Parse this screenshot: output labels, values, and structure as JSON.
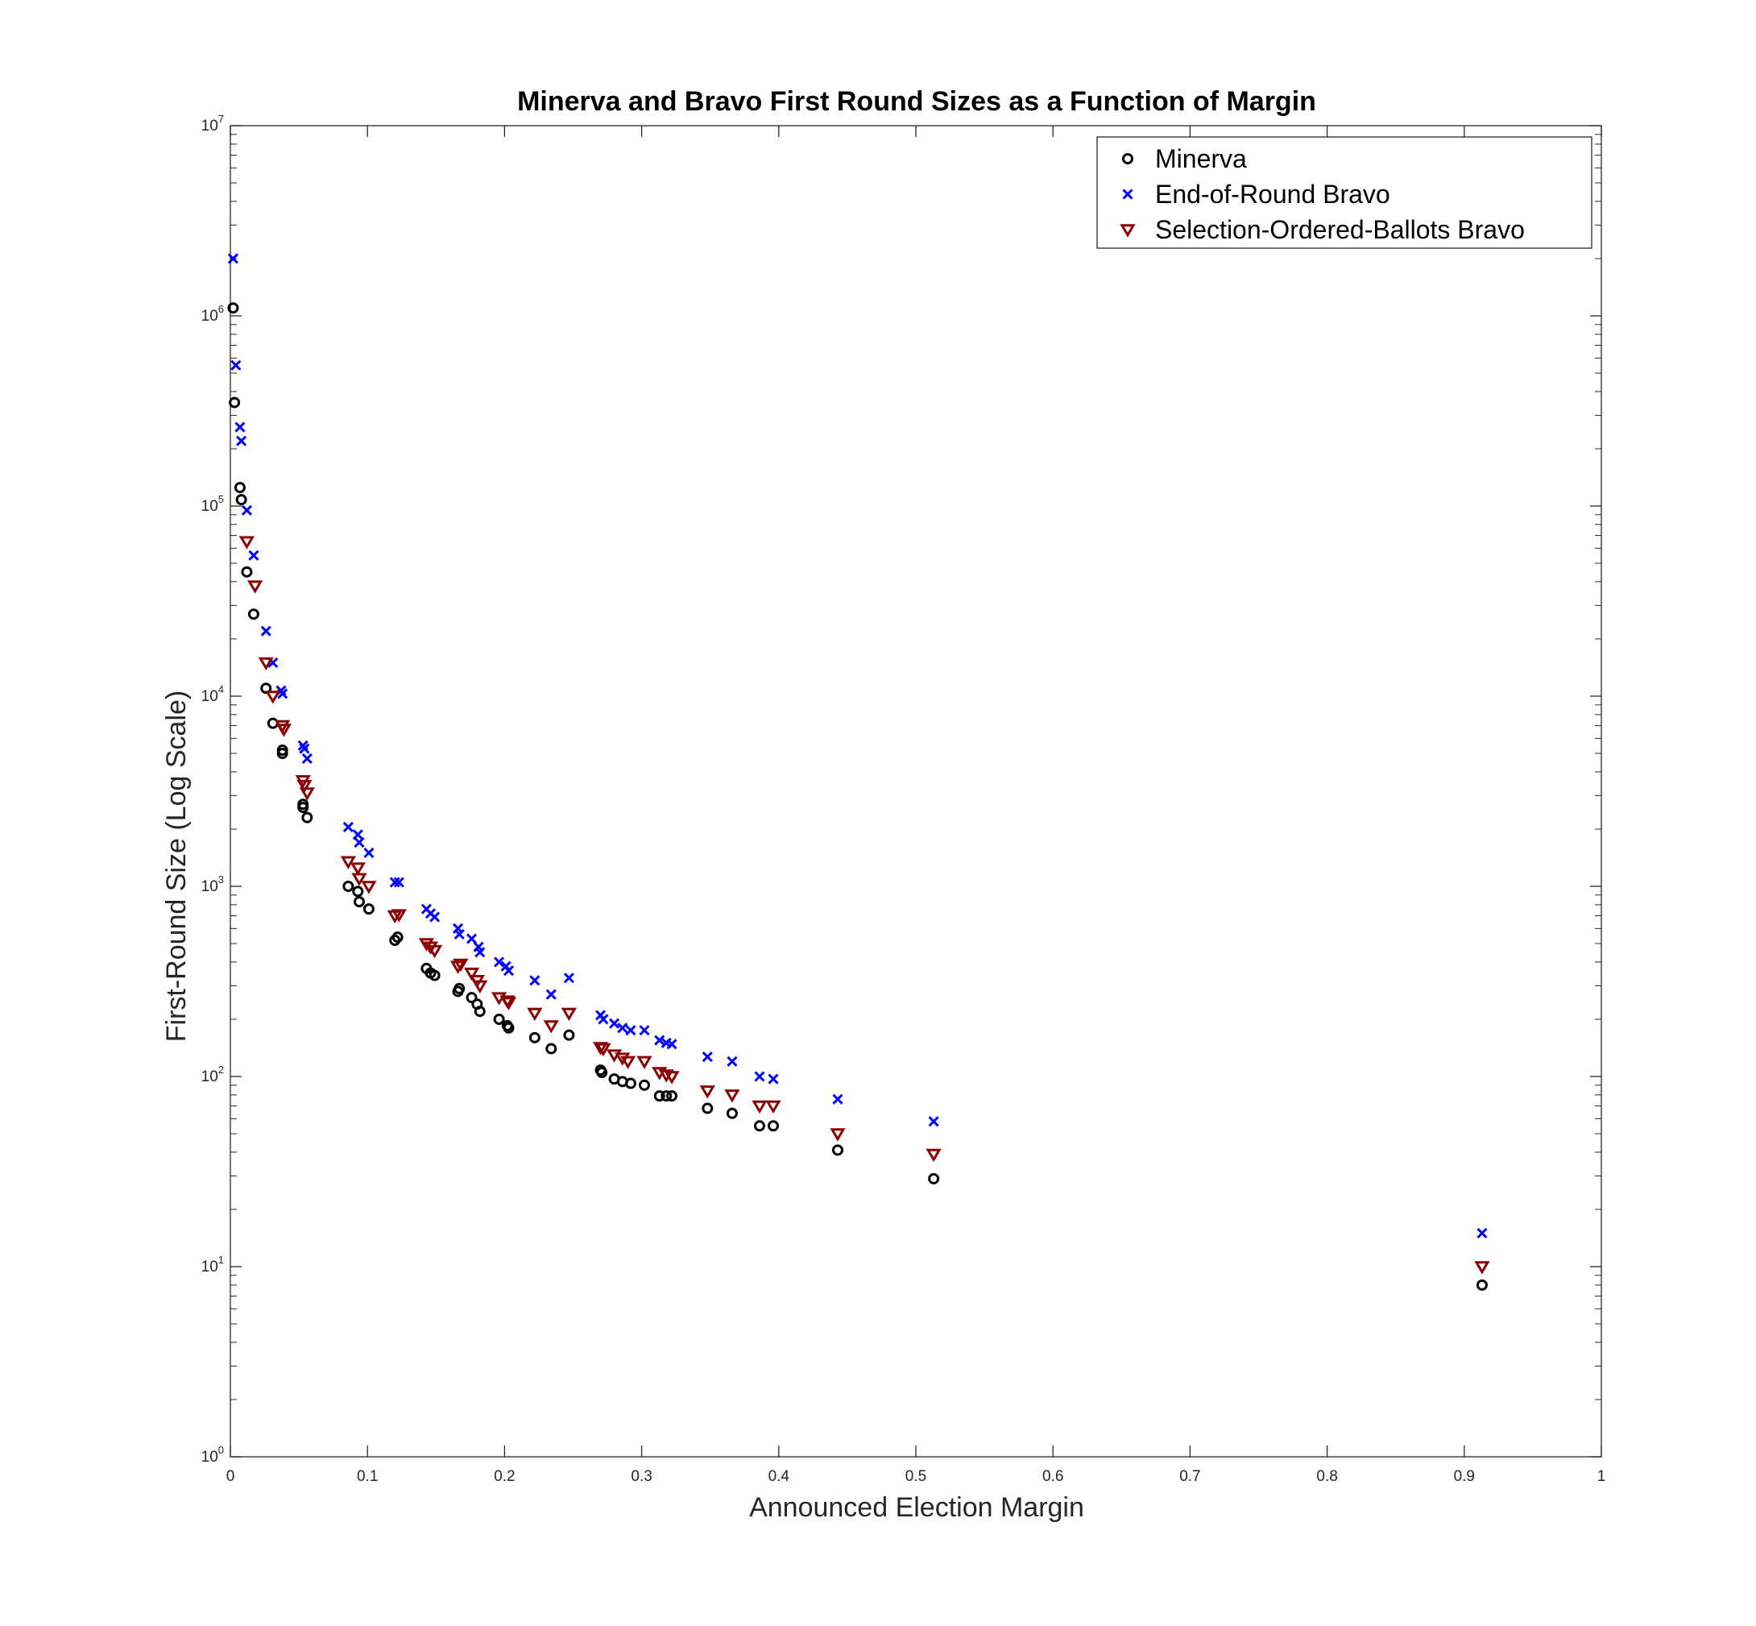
{
  "chart_data": {
    "type": "scatter",
    "title": "Minerva and Bravo First Round Sizes as a Function of Margin",
    "xlabel": "Announced Election Margin",
    "ylabel": "First-Round Size (Log Scale)",
    "xlim": [
      0,
      1
    ],
    "ylim": [
      1,
      10000000
    ],
    "yscale": "log",
    "grid": false,
    "legend_position": "top-right",
    "xticks": [
      "0",
      "0.1",
      "0.2",
      "0.3",
      "0.4",
      "0.5",
      "0.6",
      "0.7",
      "0.8",
      "0.9",
      "1"
    ],
    "yticks": [
      {
        "base": "10",
        "exp": "0"
      },
      {
        "base": "10",
        "exp": "1"
      },
      {
        "base": "10",
        "exp": "2"
      },
      {
        "base": "10",
        "exp": "3"
      },
      {
        "base": "10",
        "exp": "4"
      },
      {
        "base": "10",
        "exp": "5"
      },
      {
        "base": "10",
        "exp": "6"
      },
      {
        "base": "10",
        "exp": "7"
      }
    ],
    "series": [
      {
        "name": "Minerva",
        "marker": "circle",
        "color": "#000000",
        "points": [
          [
            0.002,
            1100000
          ],
          [
            0.003,
            350000
          ],
          [
            0.007,
            125000
          ],
          [
            0.008,
            108000
          ],
          [
            0.012,
            45000
          ],
          [
            0.017,
            27000
          ],
          [
            0.026,
            11000
          ],
          [
            0.031,
            7200
          ],
          [
            0.038,
            5200
          ],
          [
            0.038,
            5000
          ],
          [
            0.053,
            2700
          ],
          [
            0.053,
            2600
          ],
          [
            0.056,
            2300
          ],
          [
            0.086,
            1000
          ],
          [
            0.093,
            940
          ],
          [
            0.094,
            830
          ],
          [
            0.101,
            760
          ],
          [
            0.12,
            520
          ],
          [
            0.122,
            540
          ],
          [
            0.143,
            370
          ],
          [
            0.146,
            350
          ],
          [
            0.149,
            340
          ],
          [
            0.166,
            280
          ],
          [
            0.167,
            290
          ],
          [
            0.176,
            260
          ],
          [
            0.18,
            240
          ],
          [
            0.182,
            220
          ],
          [
            0.196,
            200
          ],
          [
            0.202,
            185
          ],
          [
            0.203,
            180
          ],
          [
            0.222,
            160
          ],
          [
            0.234,
            140
          ],
          [
            0.247,
            165
          ],
          [
            0.27,
            108
          ],
          [
            0.271,
            105
          ],
          [
            0.28,
            97
          ],
          [
            0.286,
            94
          ],
          [
            0.292,
            92
          ],
          [
            0.302,
            90
          ],
          [
            0.313,
            79
          ],
          [
            0.318,
            79
          ],
          [
            0.322,
            79
          ],
          [
            0.348,
            68
          ],
          [
            0.366,
            64
          ],
          [
            0.386,
            55
          ],
          [
            0.396,
            55
          ],
          [
            0.443,
            41
          ],
          [
            0.513,
            29
          ],
          [
            0.913,
            8
          ]
        ]
      },
      {
        "name": "End-of-Round Bravo",
        "marker": "x",
        "color": "#0000ff",
        "points": [
          [
            0.002,
            2000000
          ],
          [
            0.004,
            550000
          ],
          [
            0.007,
            260000
          ],
          [
            0.008,
            220000
          ],
          [
            0.012,
            95000
          ],
          [
            0.017,
            55000
          ],
          [
            0.026,
            22000
          ],
          [
            0.031,
            15000
          ],
          [
            0.037,
            10700
          ],
          [
            0.038,
            10300
          ],
          [
            0.053,
            5500
          ],
          [
            0.054,
            5300
          ],
          [
            0.056,
            4700
          ],
          [
            0.086,
            2050
          ],
          [
            0.093,
            1870
          ],
          [
            0.094,
            1700
          ],
          [
            0.101,
            1500
          ],
          [
            0.12,
            1050
          ],
          [
            0.123,
            1050
          ],
          [
            0.143,
            760
          ],
          [
            0.146,
            720
          ],
          [
            0.149,
            690
          ],
          [
            0.166,
            600
          ],
          [
            0.167,
            560
          ],
          [
            0.176,
            530
          ],
          [
            0.181,
            480
          ],
          [
            0.182,
            450
          ],
          [
            0.196,
            400
          ],
          [
            0.201,
            380
          ],
          [
            0.203,
            360
          ],
          [
            0.222,
            320
          ],
          [
            0.234,
            270
          ],
          [
            0.247,
            330
          ],
          [
            0.27,
            210
          ],
          [
            0.272,
            200
          ],
          [
            0.28,
            190
          ],
          [
            0.286,
            180
          ],
          [
            0.292,
            175
          ],
          [
            0.302,
            175
          ],
          [
            0.313,
            155
          ],
          [
            0.318,
            150
          ],
          [
            0.322,
            148
          ],
          [
            0.348,
            127
          ],
          [
            0.366,
            120
          ],
          [
            0.386,
            100
          ],
          [
            0.396,
            97
          ],
          [
            0.443,
            76
          ],
          [
            0.513,
            58
          ],
          [
            0.913,
            15
          ]
        ]
      },
      {
        "name": "Selection-Ordered-Ballots Bravo",
        "marker": "triangle-down",
        "color": "#8b0000",
        "points": [
          [
            0.012,
            65000
          ],
          [
            0.018,
            38000
          ],
          [
            0.026,
            15000
          ],
          [
            0.031,
            10000
          ],
          [
            0.038,
            7000
          ],
          [
            0.039,
            6700
          ],
          [
            0.053,
            3600
          ],
          [
            0.054,
            3400
          ],
          [
            0.056,
            3100
          ],
          [
            0.086,
            1350
          ],
          [
            0.093,
            1250
          ],
          [
            0.094,
            1100
          ],
          [
            0.101,
            1000
          ],
          [
            0.12,
            700
          ],
          [
            0.123,
            710
          ],
          [
            0.143,
            500
          ],
          [
            0.146,
            480
          ],
          [
            0.149,
            460
          ],
          [
            0.166,
            380
          ],
          [
            0.168,
            390
          ],
          [
            0.176,
            350
          ],
          [
            0.18,
            320
          ],
          [
            0.182,
            300
          ],
          [
            0.196,
            260
          ],
          [
            0.202,
            250
          ],
          [
            0.203,
            245
          ],
          [
            0.222,
            215
          ],
          [
            0.234,
            185
          ],
          [
            0.247,
            215
          ],
          [
            0.27,
            142
          ],
          [
            0.272,
            140
          ],
          [
            0.28,
            130
          ],
          [
            0.286,
            125
          ],
          [
            0.29,
            120
          ],
          [
            0.302,
            120
          ],
          [
            0.313,
            105
          ],
          [
            0.318,
            102
          ],
          [
            0.322,
            100
          ],
          [
            0.348,
            84
          ],
          [
            0.366,
            80
          ],
          [
            0.386,
            70
          ],
          [
            0.396,
            70
          ],
          [
            0.443,
            50
          ],
          [
            0.513,
            39
          ],
          [
            0.913,
            10
          ]
        ]
      }
    ]
  }
}
